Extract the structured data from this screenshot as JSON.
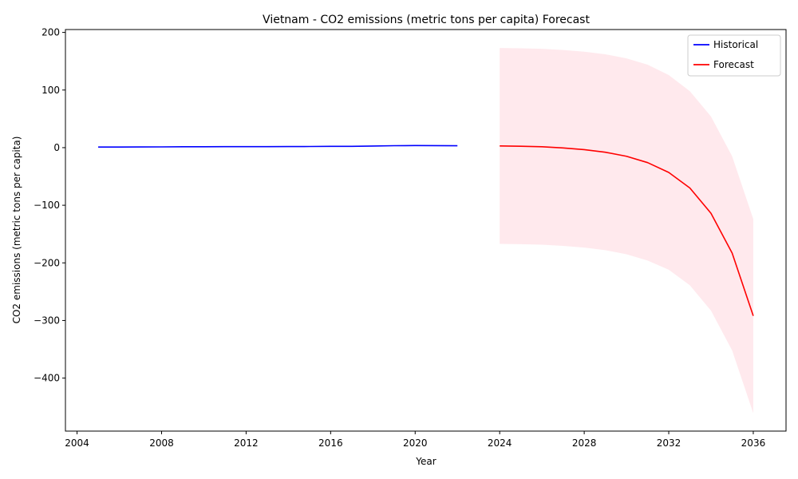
{
  "chart_data": {
    "type": "line",
    "title": "Vietnam - CO2 emissions (metric tons per capita) Forecast",
    "xlabel": "Year",
    "ylabel": "CO2 emissions (metric tons per capita)",
    "xlim": [
      2003.45,
      2037.55
    ],
    "ylim": [
      -492,
      205
    ],
    "x_ticks": [
      2004,
      2008,
      2012,
      2016,
      2020,
      2024,
      2028,
      2032,
      2036
    ],
    "y_ticks": [
      -400,
      -300,
      -200,
      -100,
      0,
      100,
      200
    ],
    "legend_position": "top-right",
    "grid": false,
    "series": [
      {
        "name": "Historical",
        "color": "#0000ff",
        "x": [
          2005,
          2006,
          2007,
          2008,
          2009,
          2010,
          2011,
          2012,
          2013,
          2014,
          2015,
          2016,
          2017,
          2018,
          2019,
          2020,
          2021,
          2022
        ],
        "y": [
          1.0,
          1.1,
          1.2,
          1.3,
          1.5,
          1.6,
          1.7,
          1.7,
          1.8,
          1.9,
          2.0,
          2.2,
          2.3,
          2.8,
          3.4,
          3.6,
          3.5,
          3.3
        ]
      },
      {
        "name": "Forecast",
        "color": "#ff0000",
        "x": [
          2024,
          2025,
          2026,
          2027,
          2028,
          2029,
          2030,
          2031,
          2032,
          2033,
          2034,
          2035,
          2036
        ],
        "y": [
          3.0,
          2.5,
          1.5,
          -0.5,
          -3.5,
          -8,
          -15,
          -26,
          -43,
          -70,
          -114,
          -183,
          -292
        ]
      }
    ],
    "confidence_band": {
      "color": "#ffc0cb",
      "opacity": 0.35,
      "x": [
        2024,
        2025,
        2026,
        2027,
        2028,
        2029,
        2030,
        2031,
        2032,
        2033,
        2034,
        2035,
        2036
      ],
      "upper": [
        173,
        172.5,
        171.5,
        169.5,
        166.5,
        162,
        155,
        144,
        126,
        98,
        54,
        -15,
        -124
      ],
      "lower": [
        -167,
        -167.5,
        -168.5,
        -170.5,
        -173.5,
        -178,
        -185,
        -196,
        -212,
        -239,
        -283,
        -352,
        -461
      ]
    }
  }
}
